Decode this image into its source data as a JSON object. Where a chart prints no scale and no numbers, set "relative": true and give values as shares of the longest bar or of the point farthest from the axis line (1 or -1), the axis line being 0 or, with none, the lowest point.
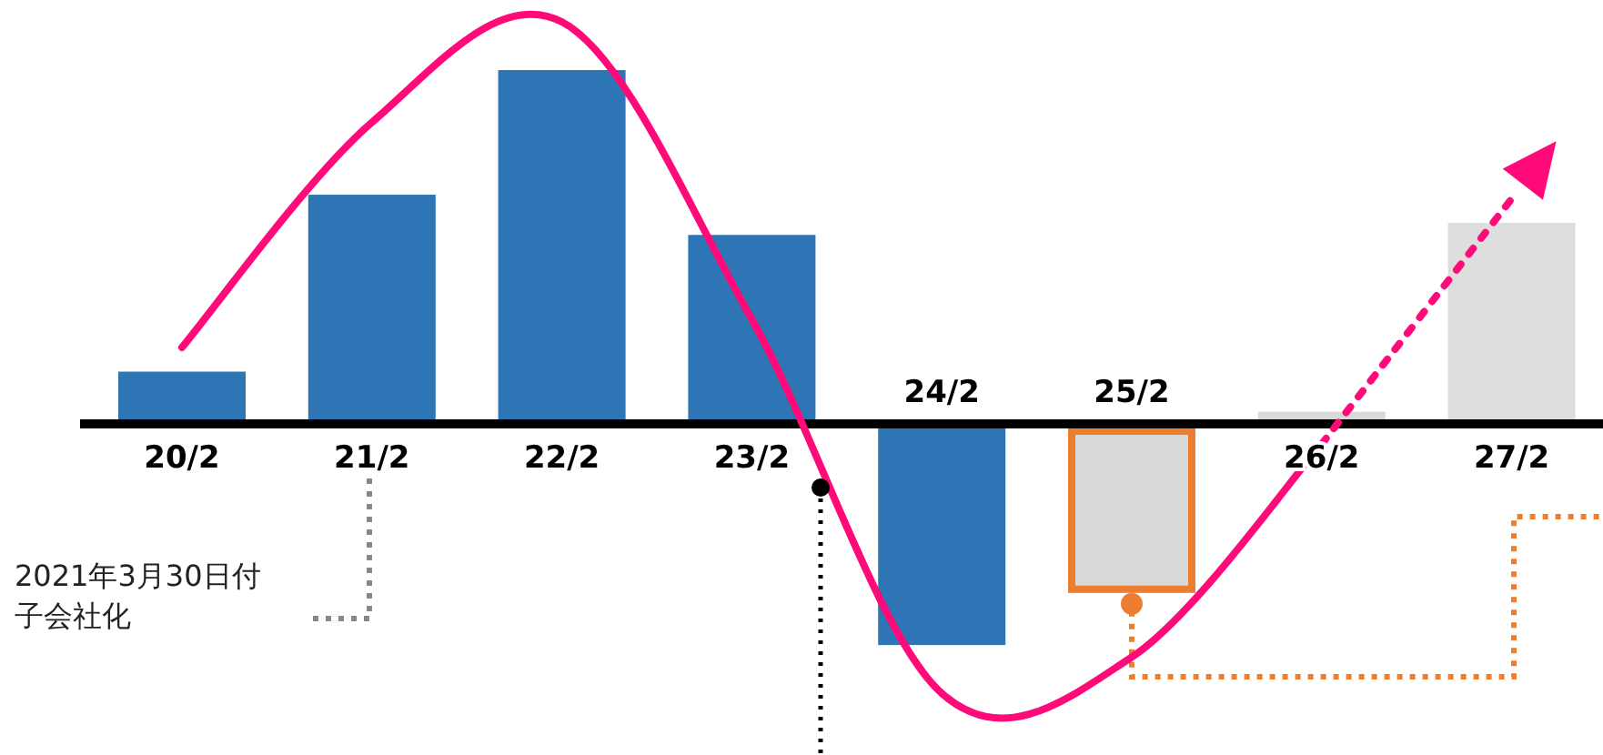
{
  "chart_data": {
    "type": "bar",
    "relative": true,
    "legend": false,
    "grid": false,
    "marker": "none",
    "categories": [
      "20/2",
      "21/2",
      "22/2",
      "23/2",
      "24/2",
      "25/2",
      "26/2",
      "27/2"
    ],
    "annotations": [
      "2021年3月30日付子会社化"
    ],
    "series": [
      {
        "type": "bar",
        "values": [
          0.13,
          0.57,
          0.88,
          0.47,
          -0.55,
          -0.42,
          0.03,
          0.5
        ],
        "colors": [
          "#2e75b6",
          "#2e75b6",
          "#2e75b6",
          "#2e75b6",
          "#2e75b6",
          "#d9d9d9",
          "#d9d9d9",
          "#dedede"
        ]
      },
      {
        "type": "line",
        "color": "#ff0a78",
        "line_style": "solid",
        "values": [
          0.19,
          0.75,
          1.0,
          0.26,
          -0.67,
          -0.58,
          -0.05,
          null
        ]
      },
      {
        "type": "line",
        "color": "#ff0a78",
        "line_style": "dotted",
        "values": [
          null,
          null,
          null,
          null,
          null,
          null,
          -0.05,
          0.56
        ]
      }
    ]
  }
}
